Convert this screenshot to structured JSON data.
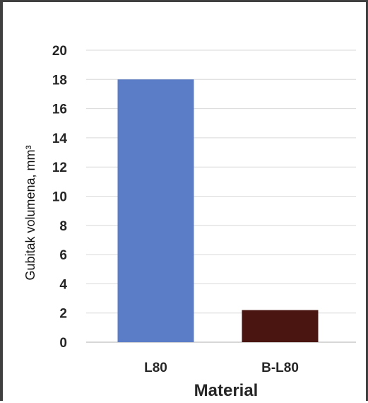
{
  "chart_data": {
    "type": "bar",
    "categories": [
      "L80",
      "B-L80"
    ],
    "values": [
      18,
      2.2
    ],
    "colors": [
      "#5b7cc6",
      "#4a1510"
    ],
    "xlabel": "Material",
    "ylabel": "Gubitak volumena, mm³",
    "ylim": [
      0,
      20
    ],
    "yticks": [
      "0",
      "2",
      "4",
      "6",
      "8",
      "10",
      "12",
      "14",
      "16",
      "18",
      "20"
    ],
    "grid": true
  }
}
